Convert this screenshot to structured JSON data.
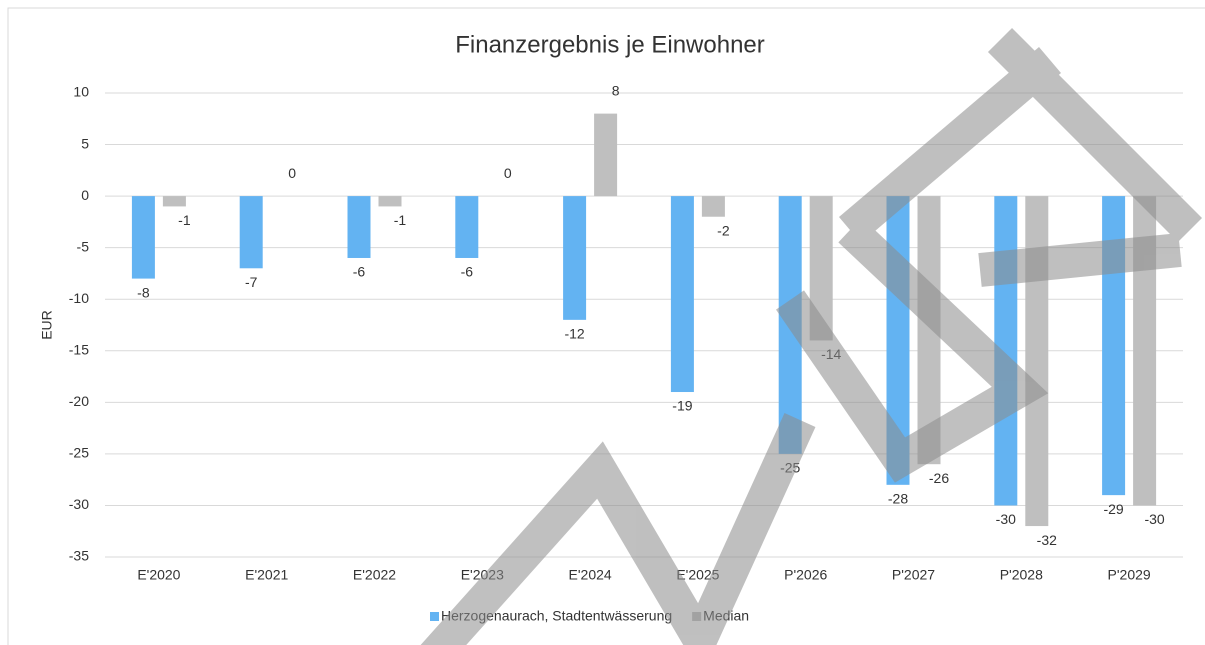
{
  "chart_data": {
    "type": "bar",
    "title": "Finanzergebnis je Einwohner",
    "y_label": "EUR",
    "categories": [
      "E'2020",
      "E'2021",
      "E'2022",
      "E'2023",
      "E'2024",
      "E'2025",
      "P'2026",
      "P'2027",
      "P'2028",
      "P'2029"
    ],
    "series": [
      {
        "name": "Herzogenaurach, Stadtentwässerung",
        "color": "#63b3f2",
        "values": [
          -8,
          -7,
          -6,
          -6,
          -12,
          -19,
          -25,
          -28,
          -30,
          -29
        ]
      },
      {
        "name": "Median",
        "color": "#bfbfbf",
        "values": [
          -1,
          0,
          -1,
          0,
          8,
          -2,
          -14,
          -26,
          -32,
          -30
        ]
      }
    ],
    "ylim": [
      -35,
      10
    ],
    "yticks": [
      -35,
      -30,
      -25,
      -20,
      -15,
      -10,
      -5,
      0,
      5,
      10
    ],
    "grid": true,
    "legend": "bottom"
  }
}
